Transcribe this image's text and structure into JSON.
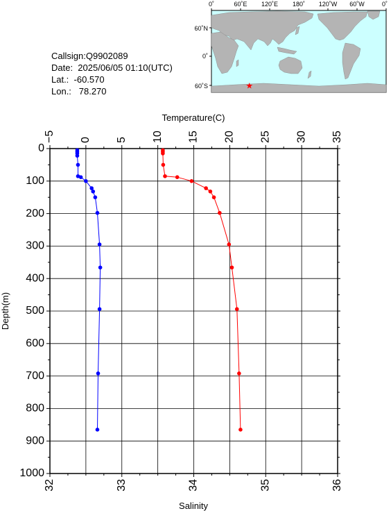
{
  "station": {
    "callsign": "Callsign:Q9902089",
    "date": "Date:  2025/06/05 01:10(UTC)",
    "lat": "Lat.:  -60.570",
    "lon": "Lon.:   78.270"
  },
  "map": {
    "lon_labels": [
      "0˚",
      "60˚E",
      "120˚E",
      "180˚",
      "120˚W",
      "60˚W",
      "0˚"
    ],
    "lat_labels": [
      "60˚N",
      "0˚",
      "60˚S"
    ],
    "marker": {
      "lon": 78.27,
      "lat": -60.57,
      "color": "#ff0000"
    },
    "ocean_color": "#ccffff",
    "land_color": "#b4b4b4"
  },
  "chart_data": {
    "type": "line",
    "title": "",
    "temperature_axis": {
      "label": "Temperature(C)",
      "range": [
        -5,
        35
      ],
      "ticks": [
        "−5",
        "0",
        "5",
        "10",
        "15",
        "20",
        "25",
        "30",
        "35"
      ]
    },
    "salinity_axis": {
      "label": "Salinity",
      "range": [
        32,
        36
      ],
      "ticks": [
        "32",
        "33",
        "34",
        "35",
        "36"
      ]
    },
    "depth_axis": {
      "label": "Depth(m)",
      "range": [
        0,
        1000
      ],
      "ticks": [
        "0",
        "100",
        "200",
        "300",
        "400",
        "500",
        "600",
        "700",
        "800",
        "900",
        "1000"
      ]
    },
    "grid": true,
    "series": [
      {
        "axis": "temperature",
        "color": "#ff0000",
        "points": [
          {
            "x": 10.7,
            "y": 5
          },
          {
            "x": 10.7,
            "y": 10
          },
          {
            "x": 10.7,
            "y": 15
          },
          {
            "x": 10.75,
            "y": 50
          },
          {
            "x": 11.0,
            "y": 85
          },
          {
            "x": 12.7,
            "y": 88
          },
          {
            "x": 14.7,
            "y": 100
          },
          {
            "x": 16.7,
            "y": 122
          },
          {
            "x": 17.3,
            "y": 132
          },
          {
            "x": 17.8,
            "y": 150
          },
          {
            "x": 18.6,
            "y": 198
          },
          {
            "x": 19.9,
            "y": 295
          },
          {
            "x": 20.3,
            "y": 366
          },
          {
            "x": 21.0,
            "y": 494
          },
          {
            "x": 21.3,
            "y": 692
          },
          {
            "x": 21.5,
            "y": 865
          }
        ]
      },
      {
        "axis": "salinity",
        "color": "#0000ff",
        "points": [
          {
            "x": 32.38,
            "y": 5
          },
          {
            "x": 32.38,
            "y": 10
          },
          {
            "x": 32.38,
            "y": 15
          },
          {
            "x": 32.38,
            "y": 22
          },
          {
            "x": 32.39,
            "y": 50
          },
          {
            "x": 32.39,
            "y": 85
          },
          {
            "x": 32.43,
            "y": 88
          },
          {
            "x": 32.5,
            "y": 100
          },
          {
            "x": 32.58,
            "y": 122
          },
          {
            "x": 32.6,
            "y": 132
          },
          {
            "x": 32.63,
            "y": 150
          },
          {
            "x": 32.66,
            "y": 198
          },
          {
            "x": 32.69,
            "y": 295
          },
          {
            "x": 32.7,
            "y": 366
          },
          {
            "x": 32.69,
            "y": 494
          },
          {
            "x": 32.67,
            "y": 692
          },
          {
            "x": 32.66,
            "y": 865
          }
        ]
      }
    ]
  }
}
